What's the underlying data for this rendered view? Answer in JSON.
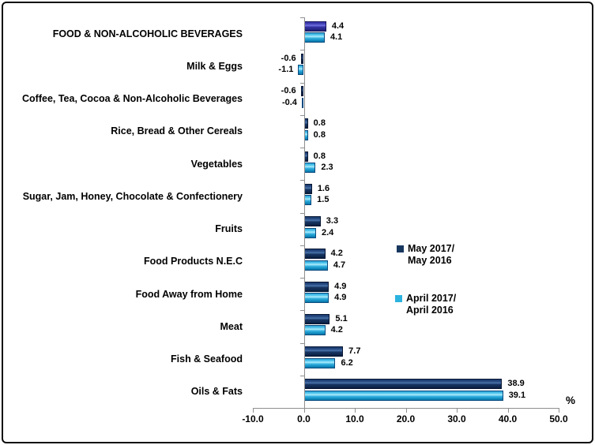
{
  "chart_data": {
    "type": "bar",
    "orientation": "horizontal",
    "title": "",
    "xlabel": "%",
    "ylabel": "",
    "unit_label": "%",
    "grid": false,
    "value_labels": true,
    "xlim": [
      -10,
      50
    ],
    "xticks": [
      -10.0,
      0.0,
      10.0,
      20.0,
      30.0,
      40.0,
      50.0
    ],
    "categories": [
      "FOOD & NON-ALCOHOLIC BEVERAGES",
      "Milk & Eggs",
      "Coffee, Tea, Cocoa & Non-Alcoholic Beverages",
      "Rice, Bread & Other Cereals",
      "Vegetables",
      "Sugar, Jam, Honey, Chocolate & Confectionery",
      "Fruits",
      "Food Products N.E.C",
      "Food Away from Home",
      "Meat",
      "Fish & Seafood",
      "Oils & Fats"
    ],
    "series": [
      {
        "name": "May 2017/ May 2016",
        "color": "#17375E",
        "first_row_color": "#3333A0",
        "values": [
          4.4,
          -0.6,
          -0.6,
          0.8,
          0.8,
          1.6,
          3.3,
          4.2,
          4.9,
          5.1,
          7.7,
          38.9
        ]
      },
      {
        "name": "April 2017/ April 2016",
        "color": "#2BB3E0",
        "values": [
          4.1,
          -1.1,
          -0.4,
          0.8,
          2.3,
          1.5,
          2.4,
          4.7,
          4.9,
          4.2,
          6.2,
          39.1
        ]
      }
    ],
    "legend_position": "right-middle"
  },
  "legend": {
    "items": [
      {
        "line1": "May 2017/",
        "line2": "May 2016",
        "color": "#17375E"
      },
      {
        "line1": "April 2017/",
        "line2": "April 2016",
        "color": "#2BB3E0"
      }
    ]
  },
  "axis": {
    "percent_label": "%",
    "line_color": "#8f8f8f"
  }
}
